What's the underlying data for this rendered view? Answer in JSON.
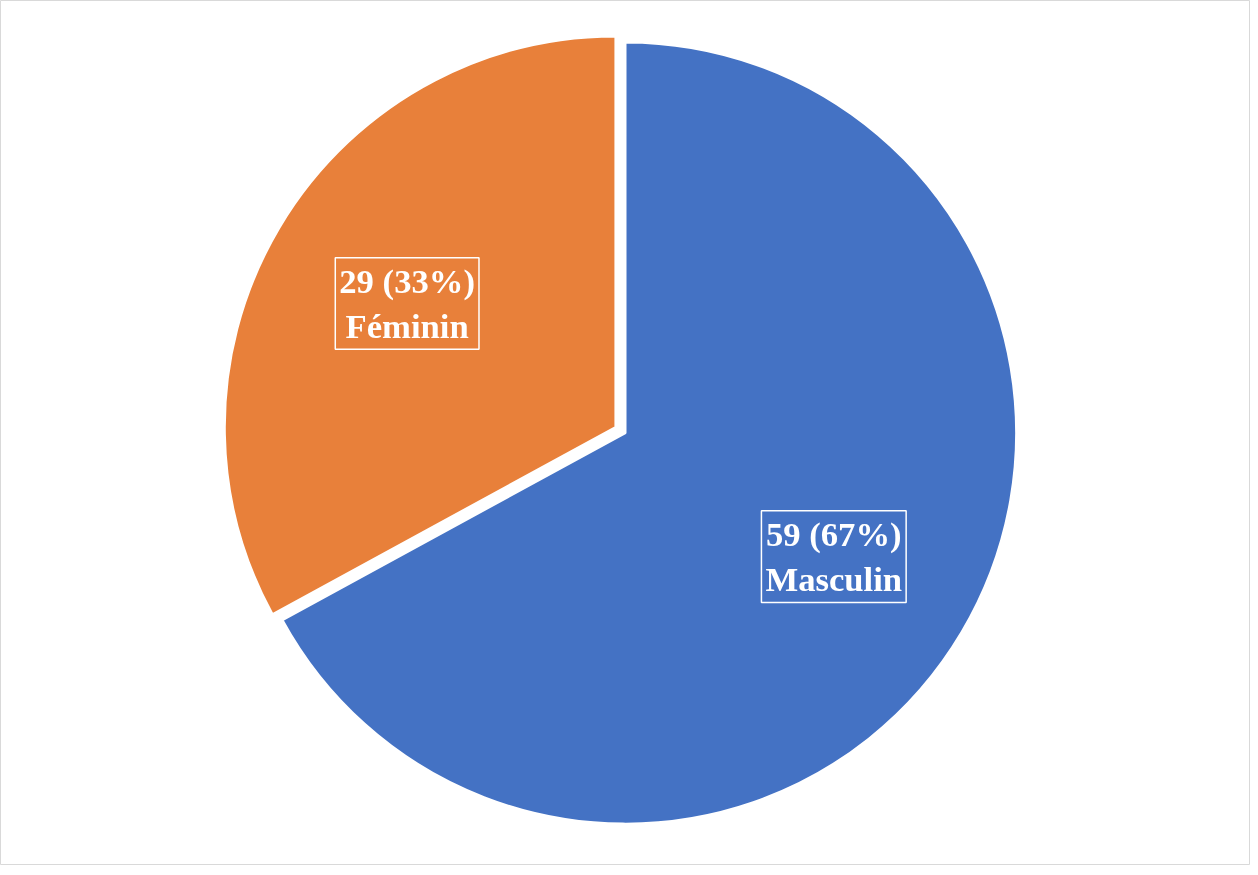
{
  "chart_data": {
    "type": "pie",
    "categories": [
      "Masculin",
      "Féminin"
    ],
    "values": [
      59,
      29
    ],
    "colors": [
      "#4472c4",
      "#e8803a"
    ],
    "value_labels": [
      "59 (67%)",
      "29 (33%)"
    ]
  }
}
